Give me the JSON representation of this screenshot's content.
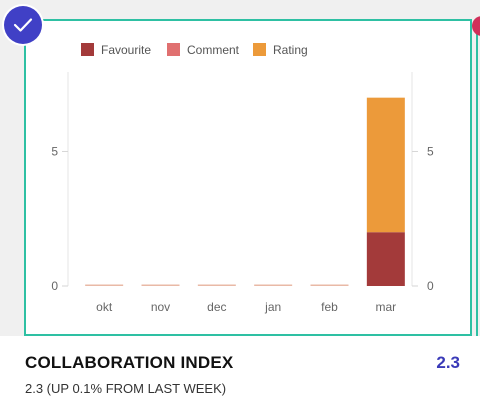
{
  "card": {
    "title": "COLLABORATION INDEX",
    "value": "2.3",
    "subtitle": "2.3 (UP 0.1% FROM LAST WEEK)",
    "selected": true,
    "icons": {
      "badge": "check-icon"
    }
  },
  "colors": {
    "frame": "#2ec0a3",
    "badge": "#4040c6",
    "value": "#3a3ab8"
  },
  "chart_data": {
    "type": "bar",
    "stacked": true,
    "categories": [
      "okt",
      "nov",
      "dec",
      "jan",
      "feb",
      "mar"
    ],
    "series": [
      {
        "name": "Favourite",
        "color": "#a33a3a",
        "values": [
          0,
          0,
          0,
          0,
          0,
          2
        ]
      },
      {
        "name": "Comment",
        "color": "#e07070",
        "values": [
          0,
          0,
          0,
          0,
          0,
          0
        ]
      },
      {
        "name": "Rating",
        "color": "#ec9a3a",
        "values": [
          0,
          0,
          0,
          0,
          0,
          5
        ]
      }
    ],
    "yticks": [
      0,
      5
    ],
    "ytick_labels": [
      "0",
      "5"
    ],
    "ylim": [
      0,
      8.4
    ],
    "dual_y_axis": true,
    "legend_position": "top-left",
    "grid": false
  }
}
